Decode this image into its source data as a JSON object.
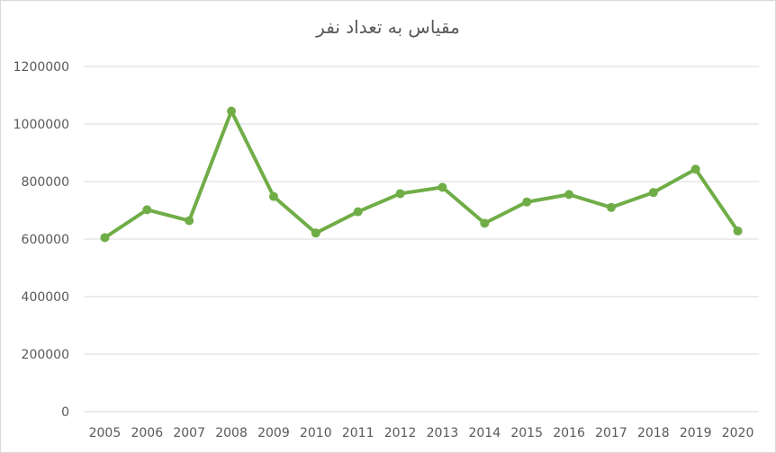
{
  "chart_data": {
    "type": "line",
    "title": "مقیاس به تعداد نفر",
    "xlabel": "",
    "ylabel": "",
    "categories": [
      "2005",
      "2006",
      "2007",
      "2008",
      "2009",
      "2010",
      "2011",
      "2012",
      "2013",
      "2014",
      "2015",
      "2016",
      "2017",
      "2018",
      "2019",
      "2020"
    ],
    "series": [
      {
        "values": [
          605000,
          702000,
          664000,
          1045000,
          748000,
          621000,
          695000,
          758000,
          780000,
          655000,
          729000,
          755000,
          710000,
          762000,
          843000,
          628000
        ]
      }
    ],
    "ylim": [
      0,
      1200000
    ],
    "yticks": [
      "0",
      "200000",
      "400000",
      "600000",
      "800000",
      "1000000",
      "1200000"
    ],
    "grid": true,
    "line_color": "#70ad47"
  }
}
